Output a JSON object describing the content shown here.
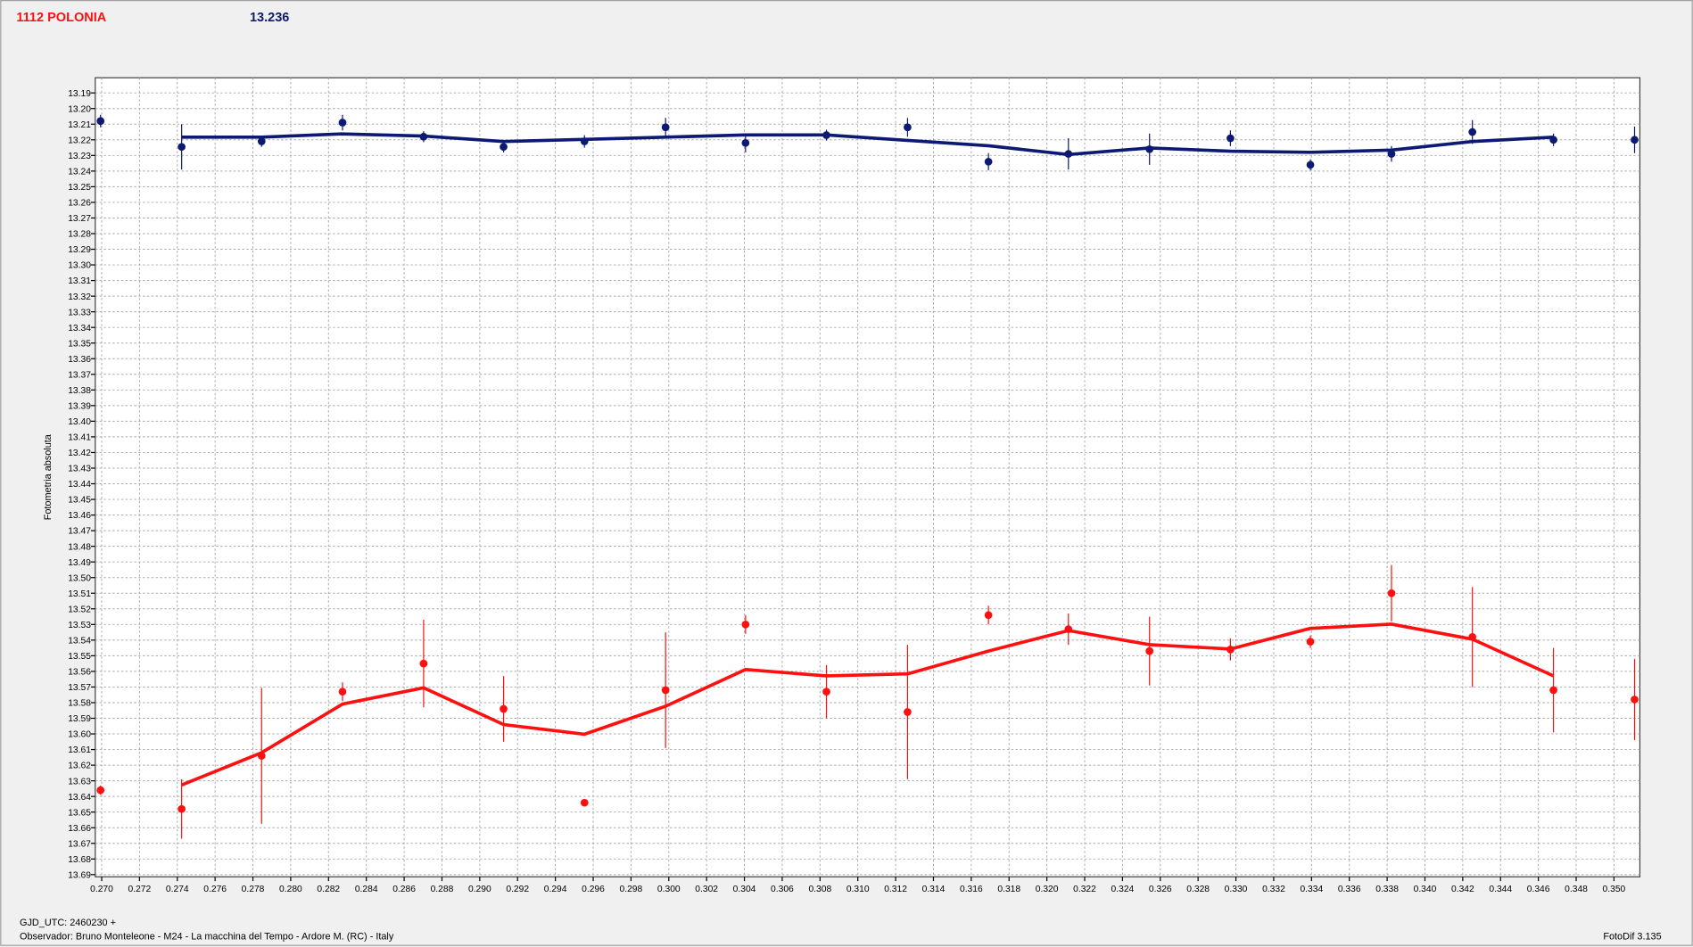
{
  "chart_data": {
    "type": "scatter",
    "title": "1112 POLONIA",
    "subtitle": "13.236",
    "y_label": "Fotometria absoluta",
    "x_label": "GJD_UTC: 2460230 +",
    "footer": "Observador: Bruno Monteleone - M24 - La macchina del Tempo - Ardore M. (RC) - Italy",
    "software": "FotoDif 3.135",
    "y_inverted": true,
    "grid": true,
    "xlim": [
      0.26966,
      0.35137
    ],
    "ylim": [
      13.1803,
      13.6914
    ],
    "xticks": [
      {
        "value": 0.27,
        "label": "0.270"
      },
      0.272,
      0.274,
      0.276,
      0.278,
      {
        "value": 0.28,
        "label": "0.280"
      },
      0.282,
      0.284,
      0.286,
      0.288,
      {
        "value": 0.29,
        "label": "0.290"
      },
      0.292,
      0.294,
      0.296,
      0.298,
      {
        "value": 0.3,
        "label": "0.300"
      },
      0.302,
      0.304,
      0.306,
      0.308,
      {
        "value": 0.31,
        "label": "0.310"
      },
      0.312,
      0.314,
      0.316,
      0.318,
      {
        "value": 0.32,
        "label": "0.320"
      },
      0.322,
      0.324,
      0.326,
      0.328,
      {
        "value": 0.33,
        "label": "0.330"
      },
      0.332,
      0.334,
      0.336,
      0.338,
      {
        "value": 0.34,
        "label": "0.340"
      },
      0.342,
      0.344,
      0.346,
      0.348,
      {
        "value": 0.35,
        "label": "0.350"
      }
    ],
    "yticks": [
      13.19,
      {
        "value": 13.2,
        "label": "13.20"
      },
      13.21,
      13.22,
      13.23,
      13.24,
      13.25,
      13.26,
      13.27,
      13.28,
      13.29,
      {
        "value": 13.3,
        "label": "13.30"
      },
      13.31,
      13.32,
      13.33,
      13.34,
      13.35,
      13.36,
      13.37,
      13.38,
      13.39,
      {
        "value": 13.4,
        "label": "13.40"
      },
      13.41,
      13.42,
      13.43,
      13.44,
      13.45,
      13.46,
      13.47,
      13.48,
      13.49,
      {
        "value": 13.5,
        "label": "13.50"
      },
      13.51,
      13.52,
      13.53,
      13.54,
      13.55,
      13.56,
      13.57,
      13.58,
      13.59,
      {
        "value": 13.6,
        "label": "13.60"
      },
      13.61,
      13.62,
      13.63,
      13.64,
      13.65,
      13.66,
      13.67,
      13.68,
      13.69
    ],
    "series": [
      {
        "color": "#0d1a73",
        "x": [
          0.26994,
          0.27423,
          0.27846,
          0.28274,
          0.28703,
          0.29126,
          0.29554,
          0.29983,
          0.30406,
          0.30834,
          0.31263,
          0.31691,
          0.32114,
          0.32543,
          0.32971,
          0.33394,
          0.33823,
          0.34251,
          0.3468,
          0.35109
        ],
        "values": [
          13.208,
          13.2245,
          13.221,
          13.209,
          13.218,
          13.2245,
          13.221,
          13.212,
          13.222,
          13.217,
          13.212,
          13.234,
          13.229,
          13.226,
          13.219,
          13.236,
          13.229,
          13.215,
          13.22,
          13.22
        ],
        "errors": [
          0.004,
          0.0145,
          0.0035,
          0.005,
          0.0035,
          0.0035,
          0.004,
          0.006,
          0.006,
          0.0035,
          0.006,
          0.0055,
          0.01,
          0.01,
          0.005,
          0.0035,
          0.005,
          0.0076,
          0.004,
          0.0085
        ]
      },
      {
        "color": "#ff1010",
        "x": [
          0.26994,
          0.27423,
          0.27846,
          0.28274,
          0.28703,
          0.29126,
          0.29554,
          0.29983,
          0.30406,
          0.30834,
          0.31263,
          0.31691,
          0.32114,
          0.32543,
          0.32971,
          0.33394,
          0.33823,
          0.34251,
          0.3468,
          0.35109
        ],
        "values": [
          13.636,
          13.648,
          13.614,
          13.573,
          13.555,
          13.584,
          13.644,
          13.572,
          13.53,
          13.573,
          13.586,
          13.524,
          13.533,
          13.547,
          13.546,
          13.541,
          13.51,
          13.538,
          13.572,
          13.578
        ],
        "errors": [
          0.003,
          0.019,
          0.0435,
          0.006,
          0.028,
          0.021,
          0.002,
          0.037,
          0.006,
          0.017,
          0.043,
          0.006,
          0.01,
          0.022,
          0.007,
          0.004,
          0.018,
          0.032,
          0.027,
          0.026
        ]
      }
    ],
    "fits": [
      {
        "color": "#0d1a73",
        "x": [
          0.27423,
          0.27846,
          0.28274,
          0.28703,
          0.29126,
          0.29554,
          0.29983,
          0.30406,
          0.30834,
          0.31263,
          0.31691,
          0.32114,
          0.32543,
          0.32971,
          0.33394,
          0.33823,
          0.34251,
          0.3468
        ],
        "values": [
          13.2183,
          13.2183,
          13.2162,
          13.2176,
          13.2211,
          13.2197,
          13.2183,
          13.2169,
          13.2169,
          13.2204,
          13.2238,
          13.2294,
          13.2252,
          13.2273,
          13.228,
          13.2266,
          13.2211,
          13.2183
        ]
      },
      {
        "color": "#ff1010",
        "x": [
          0.27423,
          0.27846,
          0.28274,
          0.28703,
          0.29126,
          0.29554,
          0.29983,
          0.30406,
          0.30834,
          0.31263,
          0.31691,
          0.32114,
          0.32543,
          0.32971,
          0.33394,
          0.33823,
          0.34251,
          0.3468
        ],
        "values": [
          13.6327,
          13.612,
          13.5809,
          13.5705,
          13.594,
          13.6002,
          13.5823,
          13.5588,
          13.5629,
          13.5616,
          13.547,
          13.5339,
          13.5429,
          13.5457,
          13.5325,
          13.5298,
          13.5394,
          13.5629
        ]
      }
    ]
  }
}
